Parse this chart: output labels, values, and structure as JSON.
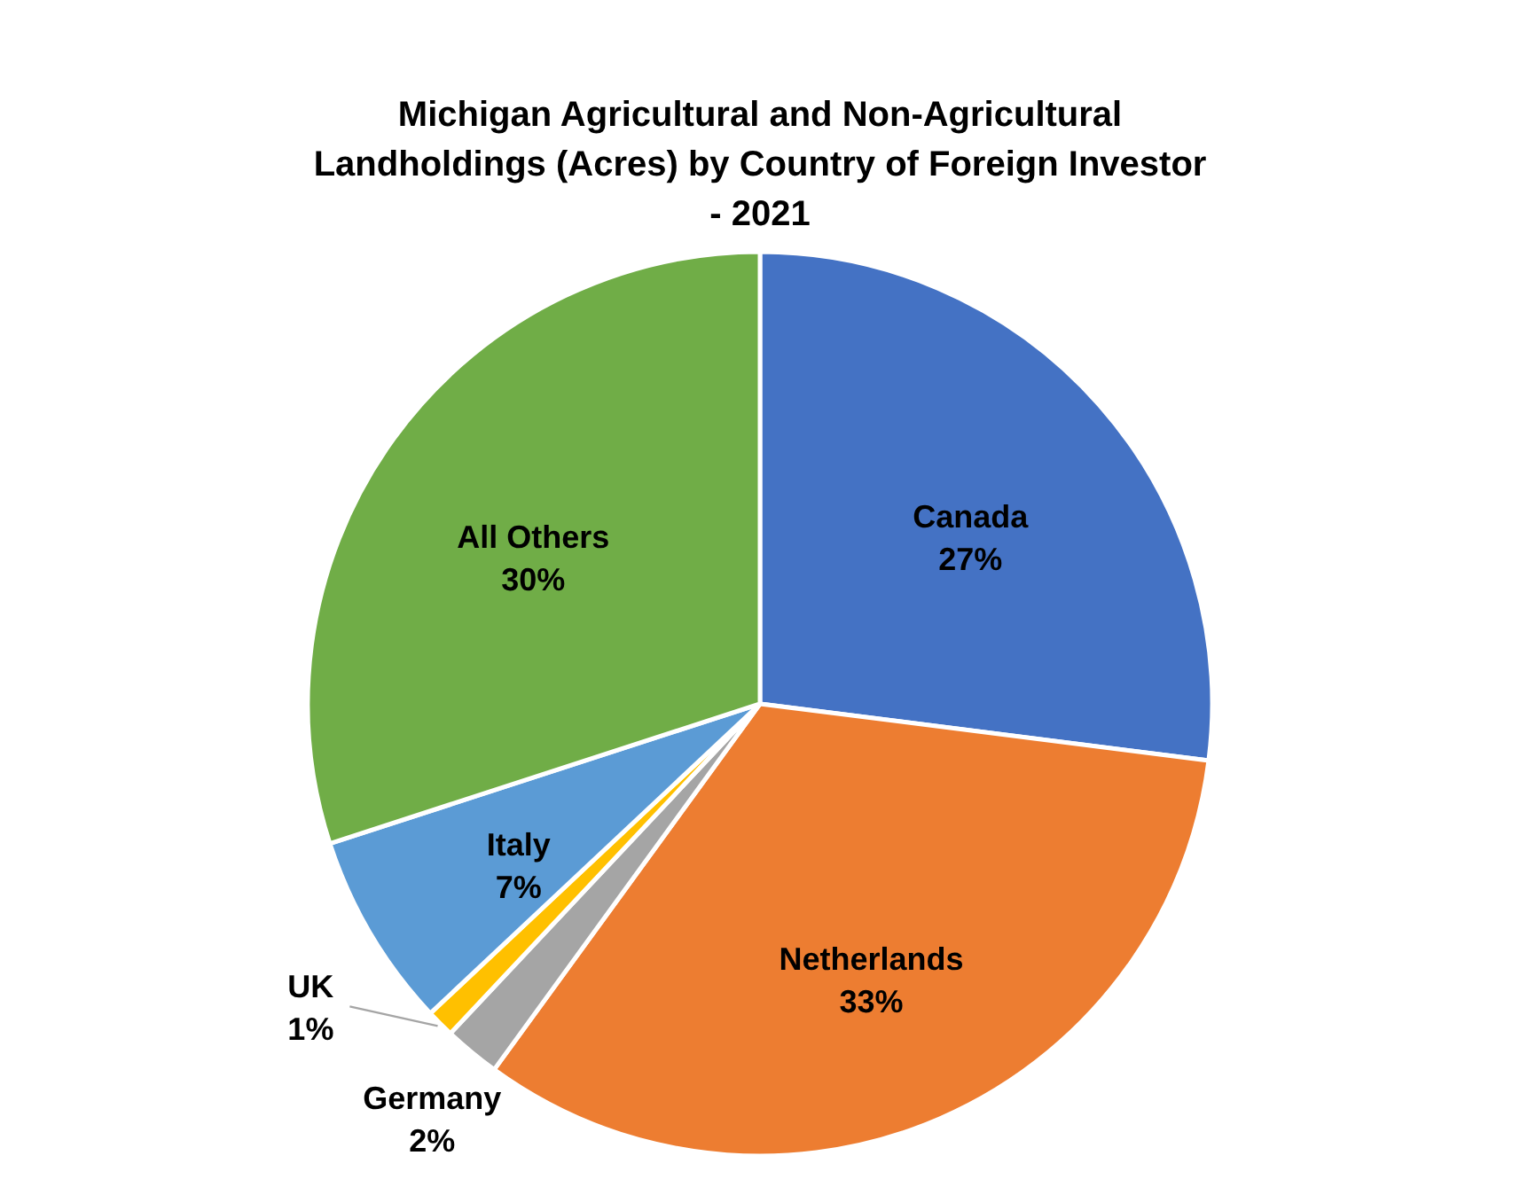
{
  "chart_data": {
    "type": "pie",
    "title": "Michigan Agricultural and Non-Agricultural Landholdings (Acres) by Country of Foreign Investor - 2021",
    "categories": [
      "Canada",
      "Netherlands",
      "Germany",
      "UK",
      "Italy",
      "All Others"
    ],
    "values": [
      27,
      33,
      2,
      1,
      7,
      30
    ],
    "colors": [
      "#4472c4",
      "#ed7d31",
      "#a5a5a5",
      "#ffc000",
      "#5b9bd5",
      "#70ad47"
    ],
    "value_labels": [
      "27%",
      "33%",
      "2%",
      "1%",
      "7%",
      "30%"
    ],
    "legend": false
  }
}
